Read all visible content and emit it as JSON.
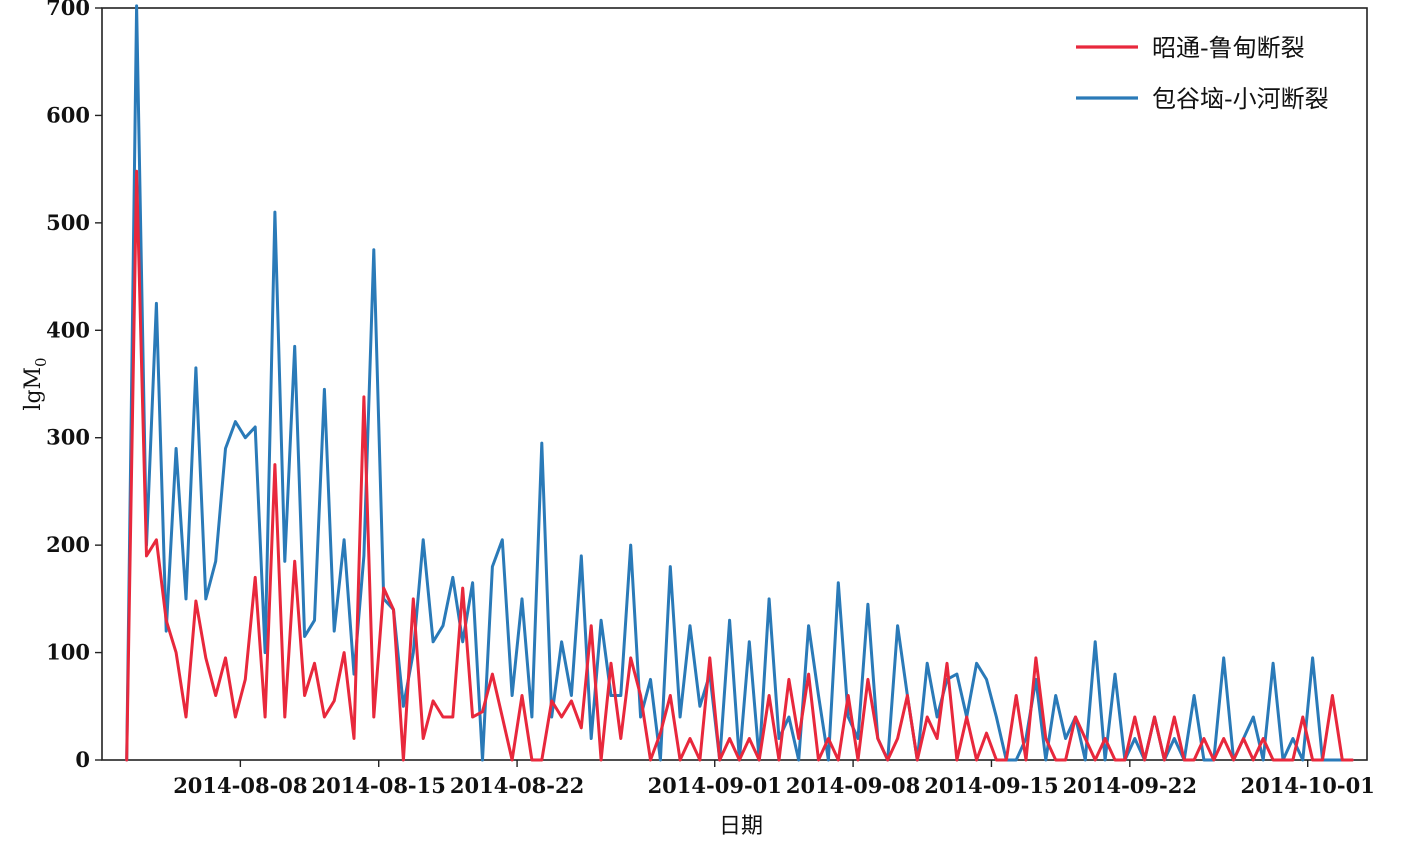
{
  "chart_data": {
    "type": "line",
    "xlabel": "日期",
    "ylabel": "lgM",
    "ylabel_sub": "0",
    "ylim": [
      0,
      700
    ],
    "yticks": [
      0,
      100,
      200,
      300,
      400,
      500,
      600,
      700
    ],
    "xlim": [
      "2014-08-01",
      "2014-10-04"
    ],
    "xticks": [
      "2014-08-08",
      "2014-08-15",
      "2014-08-22",
      "2014-09-01",
      "2014-09-08",
      "2014-09-15",
      "2014-09-22",
      "2014-10-01"
    ],
    "grid": false,
    "legend_position": "top-right",
    "x": [
      "2014-08-02T06:00",
      "2014-08-02T18:00",
      "2014-08-03T06:00",
      "2014-08-03T18:00",
      "2014-08-04T06:00",
      "2014-08-04T18:00",
      "2014-08-05T06:00",
      "2014-08-05T18:00",
      "2014-08-06T06:00",
      "2014-08-06T18:00",
      "2014-08-07T06:00",
      "2014-08-07T18:00",
      "2014-08-08T06:00",
      "2014-08-08T18:00",
      "2014-08-09T06:00",
      "2014-08-09T18:00",
      "2014-08-10T06:00",
      "2014-08-10T18:00",
      "2014-08-11T06:00",
      "2014-08-11T18:00",
      "2014-08-12T06:00",
      "2014-08-12T18:00",
      "2014-08-13T06:00",
      "2014-08-13T18:00",
      "2014-08-14T06:00",
      "2014-08-14T18:00",
      "2014-08-15T06:00",
      "2014-08-15T18:00",
      "2014-08-16T06:00",
      "2014-08-16T18:00",
      "2014-08-17T06:00",
      "2014-08-17T18:00",
      "2014-08-18T06:00",
      "2014-08-18T18:00",
      "2014-08-19T06:00",
      "2014-08-19T18:00",
      "2014-08-20T06:00",
      "2014-08-20T18:00",
      "2014-08-21T06:00",
      "2014-08-21T18:00",
      "2014-08-22T06:00",
      "2014-08-22T18:00",
      "2014-08-23T06:00",
      "2014-08-23T18:00",
      "2014-08-24T06:00",
      "2014-08-24T18:00",
      "2014-08-25T06:00",
      "2014-08-25T18:00",
      "2014-08-26T06:00",
      "2014-08-26T18:00",
      "2014-08-27T06:00",
      "2014-08-27T18:00",
      "2014-08-28T06:00",
      "2014-08-28T18:00",
      "2014-08-29T06:00",
      "2014-08-29T18:00",
      "2014-08-30T06:00",
      "2014-08-30T18:00",
      "2014-08-31T06:00",
      "2014-08-31T18:00",
      "2014-09-01T06:00",
      "2014-09-01T18:00",
      "2014-09-02T06:00",
      "2014-09-02T18:00",
      "2014-09-03T06:00",
      "2014-09-03T18:00",
      "2014-09-04T06:00",
      "2014-09-04T18:00",
      "2014-09-05T06:00",
      "2014-09-05T18:00",
      "2014-09-06T06:00",
      "2014-09-06T18:00",
      "2014-09-07T06:00",
      "2014-09-07T18:00",
      "2014-09-08T06:00",
      "2014-09-08T18:00",
      "2014-09-09T06:00",
      "2014-09-09T18:00",
      "2014-09-10T06:00",
      "2014-09-10T18:00",
      "2014-09-11T06:00",
      "2014-09-11T18:00",
      "2014-09-12T06:00",
      "2014-09-12T18:00",
      "2014-09-13T06:00",
      "2014-09-13T18:00",
      "2014-09-14T06:00",
      "2014-09-14T18:00",
      "2014-09-15T06:00",
      "2014-09-15T18:00",
      "2014-09-16T06:00",
      "2014-09-16T18:00",
      "2014-09-17T06:00",
      "2014-09-17T18:00",
      "2014-09-18T06:00",
      "2014-09-18T18:00",
      "2014-09-19T06:00",
      "2014-09-19T18:00",
      "2014-09-20T06:00",
      "2014-09-20T18:00",
      "2014-09-21T06:00",
      "2014-09-21T18:00",
      "2014-09-22T06:00",
      "2014-09-22T18:00",
      "2014-09-23T06:00",
      "2014-09-23T18:00",
      "2014-09-24T06:00",
      "2014-09-24T18:00",
      "2014-09-25T06:00",
      "2014-09-25T18:00",
      "2014-09-26T06:00",
      "2014-09-26T18:00",
      "2014-09-27T06:00",
      "2014-09-27T18:00",
      "2014-09-28T06:00",
      "2014-09-28T18:00",
      "2014-09-29T06:00",
      "2014-09-29T18:00",
      "2014-09-30T06:00",
      "2014-09-30T18:00",
      "2014-10-01T06:00",
      "2014-10-01T18:00",
      "2014-10-02T06:00",
      "2014-10-02T18:00",
      "2014-10-03T06:00"
    ],
    "series": [
      {
        "name": "昭通-鲁甸断裂",
        "color": "#e8283c",
        "values": [
          0,
          548,
          190,
          205,
          130,
          100,
          40,
          148,
          95,
          60,
          95,
          40,
          75,
          170,
          40,
          275,
          40,
          185,
          60,
          90,
          40,
          55,
          100,
          20,
          338,
          40,
          160,
          140,
          0,
          150,
          20,
          55,
          40,
          40,
          160,
          40,
          45,
          80,
          40,
          0,
          60,
          0,
          0,
          55,
          40,
          55,
          30,
          125,
          0,
          90,
          20,
          95,
          60,
          0,
          25,
          60,
          0,
          20,
          0,
          95,
          0,
          20,
          0,
          20,
          0,
          60,
          0,
          75,
          20,
          80,
          0,
          20,
          0,
          60,
          0,
          75,
          20,
          0,
          20,
          60,
          0,
          40,
          20,
          90,
          0,
          40,
          0,
          25,
          0,
          0,
          60,
          0,
          95,
          20,
          0,
          0,
          40,
          20,
          0,
          20,
          0,
          0,
          40,
          0,
          40,
          0,
          40,
          0,
          0,
          20,
          0,
          20,
          0,
          20,
          0,
          20,
          0,
          0,
          0,
          40,
          0,
          0,
          60,
          0,
          0
        ]
      },
      {
        "name": "包谷垴-小河断裂",
        "color": "#2a7ab8",
        "values": [
          0,
          702,
          200,
          425,
          120,
          290,
          150,
          365,
          150,
          185,
          290,
          315,
          300,
          310,
          100,
          510,
          185,
          385,
          115,
          130,
          345,
          120,
          205,
          80,
          190,
          475,
          150,
          140,
          50,
          100,
          205,
          110,
          125,
          170,
          110,
          165,
          0,
          180,
          205,
          60,
          150,
          40,
          295,
          40,
          110,
          60,
          190,
          20,
          130,
          60,
          60,
          200,
          40,
          75,
          0,
          180,
          40,
          125,
          50,
          80,
          0,
          130,
          0,
          110,
          0,
          150,
          20,
          40,
          0,
          125,
          60,
          0,
          165,
          40,
          20,
          145,
          20,
          0,
          125,
          60,
          0,
          90,
          40,
          75,
          80,
          40,
          90,
          75,
          40,
          0,
          0,
          20,
          75,
          0,
          60,
          20,
          40,
          0,
          110,
          0,
          80,
          0,
          20,
          0,
          40,
          0,
          20,
          0,
          60,
          0,
          0,
          95,
          0,
          20,
          40,
          0,
          90,
          0,
          20,
          0,
          95,
          0,
          0,
          0,
          0
        ]
      }
    ]
  }
}
